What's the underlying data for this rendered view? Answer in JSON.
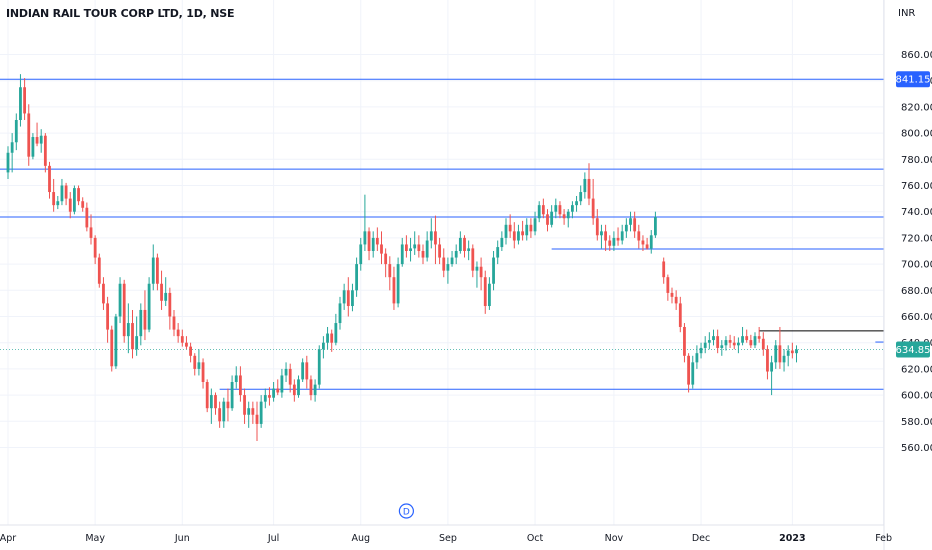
{
  "header": {
    "title": "INDIAN RAIL TOUR CORP LTD, 1D, NSE"
  },
  "colors": {
    "up": "#26a69a",
    "down": "#ef5350",
    "hline": "#2962ff",
    "black": "#000000",
    "grid": "#f0f3fa"
  },
  "chart_data": {
    "type": "candlestick",
    "currency": "INR",
    "y_ticks": [
      860,
      840,
      820,
      800,
      780,
      760,
      740,
      720,
      700,
      680,
      660,
      640,
      620,
      600,
      580,
      560
    ],
    "y_tick_labels": [
      "860.00",
      "840.00",
      "820.00",
      "800.00",
      "780.00",
      "760.00",
      "740.00",
      "720.00",
      "700.00",
      "680.00",
      "660.00",
      "640.00",
      "620.00",
      "600.00",
      "580.00",
      "560.00"
    ],
    "x_labels": [
      {
        "label": "Apr",
        "day": 0
      },
      {
        "label": "May",
        "day": 21
      },
      {
        "label": "Jun",
        "day": 42
      },
      {
        "label": "Jul",
        "day": 64
      },
      {
        "label": "Aug",
        "day": 85
      },
      {
        "label": "Sep",
        "day": 106
      },
      {
        "label": "Oct",
        "day": 127
      },
      {
        "label": "Nov",
        "day": 146
      },
      {
        "label": "Dec",
        "day": 167
      },
      {
        "label": "2023",
        "day": 189,
        "bold": true
      },
      {
        "label": "Feb",
        "day": 211
      }
    ],
    "price_badges": [
      {
        "label": "841.15",
        "value": 841.15,
        "color": "#2962ff"
      },
      {
        "label": "634.85",
        "value": 634.85,
        "color": "#26a69a"
      }
    ],
    "horizontal_lines": [
      {
        "value": 841.15,
        "from_day": 0,
        "color": "#2962ff"
      },
      {
        "value": 772.5,
        "from_day": 0,
        "color": "#2962ff"
      },
      {
        "value": 736,
        "from_day": 0,
        "color": "#2962ff"
      },
      {
        "value": 711.5,
        "from_day": 131,
        "color": "#2962ff"
      },
      {
        "value": 604.5,
        "from_day": 51,
        "color": "#2962ff"
      },
      {
        "value": 649,
        "from_day": 181,
        "color": "#000000"
      },
      {
        "value": 640.5,
        "from_day": 209,
        "color": "#2962ff"
      }
    ],
    "event_marker": {
      "label": "D",
      "day": 96
    },
    "candles": [
      [
        0,
        770,
        790,
        765,
        785
      ],
      [
        1,
        785,
        800,
        770,
        793
      ],
      [
        2,
        793,
        815,
        787,
        810
      ],
      [
        3,
        810,
        845,
        805,
        835
      ],
      [
        4,
        835,
        842,
        810,
        815
      ],
      [
        5,
        815,
        822,
        775,
        782
      ],
      [
        6,
        782,
        800,
        780,
        797
      ],
      [
        7,
        797,
        808,
        790,
        792
      ],
      [
        8,
        792,
        803,
        785,
        798
      ],
      [
        9,
        798,
        800,
        770,
        775
      ],
      [
        10,
        775,
        778,
        750,
        755
      ],
      [
        11,
        755,
        765,
        740,
        745
      ],
      [
        12,
        745,
        752,
        742,
        748
      ],
      [
        13,
        748,
        765,
        745,
        760
      ],
      [
        14,
        760,
        762,
        745,
        750
      ],
      [
        15,
        750,
        755,
        735,
        740
      ],
      [
        16,
        740,
        760,
        738,
        758
      ],
      [
        17,
        758,
        760,
        745,
        748
      ],
      [
        18,
        748,
        751,
        740,
        743
      ],
      [
        19,
        743,
        747,
        725,
        728
      ],
      [
        20,
        728,
        738,
        715,
        720
      ],
      [
        21,
        720,
        722,
        700,
        705
      ],
      [
        22,
        705,
        708,
        682,
        685
      ],
      [
        23,
        685,
        690,
        665,
        670
      ],
      [
        24,
        670,
        675,
        640,
        650
      ],
      [
        25,
        650,
        653,
        618,
        622
      ],
      [
        26,
        622,
        662,
        620,
        660
      ],
      [
        27,
        660,
        690,
        655,
        685
      ],
      [
        28,
        685,
        688,
        640,
        645
      ],
      [
        29,
        645,
        670,
        632,
        655
      ],
      [
        30,
        655,
        665,
        628,
        635
      ],
      [
        31,
        635,
        660,
        630,
        645
      ],
      [
        32,
        645,
        670,
        638,
        665
      ],
      [
        33,
        665,
        680,
        642,
        650
      ],
      [
        34,
        650,
        690,
        648,
        685
      ],
      [
        35,
        685,
        715,
        680,
        705
      ],
      [
        36,
        705,
        708,
        680,
        685
      ],
      [
        37,
        685,
        695,
        665,
        672
      ],
      [
        38,
        672,
        690,
        668,
        678
      ],
      [
        39,
        678,
        682,
        650,
        660
      ],
      [
        40,
        660,
        665,
        645,
        650
      ],
      [
        41,
        650,
        655,
        640,
        645
      ],
      [
        42,
        645,
        650,
        637,
        640
      ],
      [
        43,
        640,
        645,
        635,
        637
      ],
      [
        44,
        637,
        640,
        625,
        630
      ],
      [
        45,
        630,
        632,
        615,
        620
      ],
      [
        46,
        620,
        635,
        615,
        625
      ],
      [
        47,
        625,
        628,
        605,
        610
      ],
      [
        48,
        610,
        612,
        587,
        590
      ],
      [
        49,
        590,
        605,
        578,
        600
      ],
      [
        50,
        600,
        602,
        585,
        590
      ],
      [
        51,
        590,
        595,
        575,
        580
      ],
      [
        52,
        580,
        598,
        575,
        595
      ],
      [
        53,
        595,
        605,
        580,
        590
      ],
      [
        54,
        590,
        615,
        588,
        610
      ],
      [
        55,
        610,
        622,
        605,
        615
      ],
      [
        56,
        615,
        622,
        595,
        600
      ],
      [
        57,
        600,
        605,
        578,
        585
      ],
      [
        58,
        585,
        595,
        575,
        590
      ],
      [
        59,
        590,
        595,
        578,
        585
      ],
      [
        60,
        585,
        595,
        565,
        578
      ],
      [
        61,
        578,
        600,
        575,
        595
      ],
      [
        62,
        595,
        605,
        590,
        600
      ],
      [
        63,
        600,
        606,
        592,
        598
      ],
      [
        64,
        598,
        610,
        595,
        605
      ],
      [
        65,
        605,
        612,
        600,
        602
      ],
      [
        66,
        602,
        620,
        598,
        615
      ],
      [
        67,
        615,
        625,
        610,
        620
      ],
      [
        68,
        620,
        624,
        602,
        608
      ],
      [
        69,
        608,
        612,
        595,
        600
      ],
      [
        70,
        600,
        615,
        598,
        612
      ],
      [
        71,
        612,
        628,
        610,
        625
      ],
      [
        72,
        625,
        630,
        605,
        612
      ],
      [
        73,
        612,
        615,
        596,
        600
      ],
      [
        74,
        600,
        612,
        595,
        608
      ],
      [
        75,
        608,
        638,
        605,
        635
      ],
      [
        76,
        635,
        645,
        628,
        640
      ],
      [
        77,
        640,
        652,
        635,
        647
      ],
      [
        78,
        647,
        650,
        633,
        640
      ],
      [
        79,
        640,
        662,
        638,
        655
      ],
      [
        80,
        655,
        675,
        650,
        670
      ],
      [
        81,
        670,
        685,
        665,
        680
      ],
      [
        82,
        680,
        690,
        660,
        668
      ],
      [
        83,
        668,
        685,
        664,
        680
      ],
      [
        84,
        680,
        705,
        675,
        700
      ],
      [
        85,
        700,
        720,
        695,
        715
      ],
      [
        86,
        715,
        753,
        710,
        725
      ],
      [
        87,
        725,
        728,
        703,
        710
      ],
      [
        88,
        710,
        725,
        705,
        720
      ],
      [
        89,
        720,
        728,
        710,
        715
      ],
      [
        90,
        715,
        725,
        700,
        708
      ],
      [
        91,
        708,
        712,
        690,
        700
      ],
      [
        92,
        700,
        706,
        680,
        690
      ],
      [
        93,
        690,
        698,
        665,
        670
      ],
      [
        94,
        670,
        705,
        667,
        700
      ],
      [
        95,
        700,
        720,
        698,
        715
      ],
      [
        96,
        715,
        722,
        705,
        710
      ],
      [
        97,
        710,
        720,
        702,
        712
      ],
      [
        98,
        712,
        725,
        707,
        715
      ],
      [
        99,
        715,
        722,
        705,
        710
      ],
      [
        100,
        710,
        715,
        700,
        705
      ],
      [
        101,
        705,
        725,
        702,
        718
      ],
      [
        102,
        718,
        735,
        712,
        725
      ],
      [
        103,
        725,
        737,
        700,
        715
      ],
      [
        104,
        715,
        720,
        700,
        705
      ],
      [
        105,
        705,
        712,
        690,
        695
      ],
      [
        106,
        695,
        705,
        685,
        700
      ],
      [
        107,
        700,
        710,
        698,
        705
      ],
      [
        108,
        705,
        715,
        700,
        710
      ],
      [
        109,
        710,
        725,
        708,
        720
      ],
      [
        110,
        720,
        722,
        705,
        710
      ],
      [
        111,
        710,
        718,
        703,
        712
      ],
      [
        112,
        712,
        715,
        690,
        695
      ],
      [
        113,
        695,
        702,
        682,
        698
      ],
      [
        114,
        698,
        705,
        680,
        690
      ],
      [
        115,
        690,
        695,
        662,
        668
      ],
      [
        116,
        668,
        690,
        665,
        685
      ],
      [
        117,
        685,
        710,
        680,
        705
      ],
      [
        118,
        705,
        718,
        700,
        713
      ],
      [
        119,
        713,
        725,
        710,
        720
      ],
      [
        120,
        720,
        735,
        715,
        730
      ],
      [
        121,
        730,
        738,
        720,
        725
      ],
      [
        122,
        725,
        732,
        712,
        718
      ],
      [
        123,
        718,
        730,
        715,
        725
      ],
      [
        124,
        725,
        733,
        718,
        722
      ],
      [
        125,
        722,
        735,
        718,
        730
      ],
      [
        126,
        730,
        735,
        720,
        725
      ],
      [
        127,
        725,
        740,
        722,
        735
      ],
      [
        128,
        735,
        748,
        732,
        745
      ],
      [
        129,
        745,
        750,
        735,
        738
      ],
      [
        130,
        738,
        742,
        725,
        730
      ],
      [
        131,
        730,
        745,
        728,
        740
      ],
      [
        132,
        740,
        750,
        735,
        745
      ],
      [
        133,
        745,
        748,
        735,
        738
      ],
      [
        134,
        738,
        742,
        730,
        735
      ],
      [
        135,
        735,
        742,
        728,
        740
      ],
      [
        136,
        740,
        748,
        735,
        745
      ],
      [
        137,
        745,
        752,
        740,
        748
      ],
      [
        138,
        748,
        760,
        745,
        755
      ],
      [
        139,
        755,
        770,
        750,
        765
      ],
      [
        140,
        765,
        777,
        745,
        750
      ],
      [
        141,
        750,
        765,
        730,
        735
      ],
      [
        142,
        735,
        742,
        718,
        722
      ],
      [
        143,
        722,
        730,
        712,
        725
      ],
      [
        144,
        725,
        730,
        710,
        718
      ],
      [
        145,
        718,
        722,
        710,
        714
      ],
      [
        146,
        714,
        725,
        710,
        720
      ],
      [
        147,
        720,
        728,
        714,
        718
      ],
      [
        148,
        718,
        730,
        715,
        725
      ],
      [
        149,
        725,
        735,
        720,
        730
      ],
      [
        150,
        730,
        740,
        725,
        735
      ],
      [
        151,
        735,
        740,
        720,
        725
      ],
      [
        152,
        725,
        730,
        712,
        718
      ],
      [
        153,
        718,
        722,
        710,
        715
      ],
      [
        154,
        715,
        720,
        711,
        712
      ],
      [
        155,
        712,
        726,
        708,
        722
      ],
      [
        156,
        722,
        740,
        720,
        736
      ],
      [
        158,
        702,
        705,
        685,
        690
      ],
      [
        159,
        690,
        692,
        672,
        678
      ],
      [
        160,
        678,
        682,
        670,
        675
      ],
      [
        161,
        675,
        680,
        665,
        670
      ],
      [
        162,
        670,
        675,
        648,
        652
      ],
      [
        163,
        652,
        655,
        625,
        630
      ],
      [
        164,
        630,
        632,
        602,
        608
      ],
      [
        165,
        608,
        630,
        605,
        625
      ],
      [
        166,
        625,
        638,
        620,
        632
      ],
      [
        167,
        632,
        640,
        628,
        636
      ],
      [
        168,
        636,
        645,
        632,
        640
      ],
      [
        169,
        640,
        648,
        635,
        642
      ],
      [
        170,
        642,
        650,
        638,
        645
      ],
      [
        171,
        645,
        650,
        632,
        636
      ],
      [
        172,
        636,
        642,
        630,
        638
      ],
      [
        173,
        638,
        645,
        634,
        642
      ],
      [
        174,
        642,
        646,
        636,
        640
      ],
      [
        175,
        640,
        645,
        635,
        638
      ],
      [
        176,
        638,
        644,
        632,
        640
      ],
      [
        177,
        640,
        652,
        638,
        645
      ],
      [
        178,
        645,
        650,
        640,
        642
      ],
      [
        179,
        642,
        646,
        636,
        638
      ],
      [
        180,
        638,
        648,
        636,
        645
      ],
      [
        181,
        645,
        652,
        640,
        643
      ],
      [
        182,
        643,
        648,
        630,
        635
      ],
      [
        183,
        635,
        638,
        612,
        618
      ],
      [
        184,
        618,
        630,
        600,
        625
      ],
      [
        185,
        625,
        642,
        620,
        638
      ],
      [
        186,
        638,
        652,
        620,
        625
      ],
      [
        187,
        625,
        635,
        618,
        630
      ],
      [
        188,
        630,
        638,
        622,
        634
      ],
      [
        189,
        634,
        640,
        628,
        632
      ],
      [
        190,
        632,
        638,
        625,
        634.85
      ]
    ]
  }
}
